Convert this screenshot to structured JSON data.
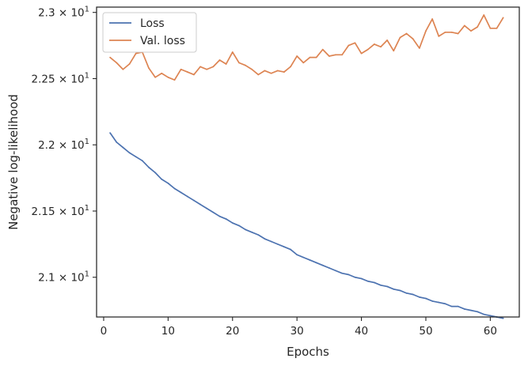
{
  "chart_data": {
    "type": "line",
    "title": "",
    "xlabel": "Epochs",
    "ylabel": "Negative log-likelihood",
    "xlim": [
      -1.1,
      64.5
    ],
    "ylim": [
      20.7,
      23.04
    ],
    "x_ticks": [
      0,
      10,
      20,
      30,
      40,
      50,
      60
    ],
    "y_ticks": [
      {
        "value": 21.0,
        "label_base": "2.1",
        "label_exp": "1"
      },
      {
        "value": 21.5,
        "label_base": "2.15",
        "label_exp": "1"
      },
      {
        "value": 22.0,
        "label_base": "2.2",
        "label_exp": "1"
      },
      {
        "value": 22.5,
        "label_base": "2.25",
        "label_exp": "1"
      },
      {
        "value": 23.0,
        "label_base": "2.3",
        "label_exp": "1"
      }
    ],
    "y_tick_label_multiplier": "× 10",
    "grid": false,
    "legend_position": "top-left",
    "x": [
      1,
      2,
      3,
      4,
      5,
      6,
      7,
      8,
      9,
      10,
      11,
      12,
      13,
      14,
      15,
      16,
      17,
      18,
      19,
      20,
      21,
      22,
      23,
      24,
      25,
      26,
      27,
      28,
      29,
      30,
      31,
      32,
      33,
      34,
      35,
      36,
      37,
      38,
      39,
      40,
      41,
      42,
      43,
      44,
      45,
      46,
      47,
      48,
      49,
      50,
      51,
      52,
      53,
      54,
      55,
      56,
      57,
      58,
      59,
      60,
      61,
      62
    ],
    "series": [
      {
        "name": "Loss",
        "color": "#4c72b0",
        "values": [
          22.09,
          22.02,
          21.98,
          21.94,
          21.91,
          21.88,
          21.83,
          21.79,
          21.74,
          21.71,
          21.67,
          21.64,
          21.61,
          21.58,
          21.55,
          21.52,
          21.49,
          21.46,
          21.44,
          21.41,
          21.39,
          21.36,
          21.34,
          21.32,
          21.29,
          21.27,
          21.25,
          21.23,
          21.21,
          21.17,
          21.15,
          21.13,
          21.11,
          21.09,
          21.07,
          21.05,
          21.03,
          21.02,
          21.0,
          20.99,
          20.97,
          20.96,
          20.94,
          20.93,
          20.91,
          20.9,
          20.88,
          20.87,
          20.85,
          20.84,
          20.82,
          20.81,
          20.8,
          20.78,
          20.78,
          20.76,
          20.75,
          20.74,
          20.72,
          20.71,
          20.7,
          20.69
        ]
      },
      {
        "name": "Val. loss",
        "color": "#dd8452",
        "values": [
          22.66,
          22.62,
          22.57,
          22.61,
          22.69,
          22.7,
          22.58,
          22.51,
          22.54,
          22.51,
          22.49,
          22.57,
          22.55,
          22.53,
          22.59,
          22.57,
          22.59,
          22.64,
          22.61,
          22.7,
          22.62,
          22.6,
          22.57,
          22.53,
          22.56,
          22.54,
          22.56,
          22.55,
          22.59,
          22.67,
          22.62,
          22.66,
          22.66,
          22.72,
          22.67,
          22.68,
          22.68,
          22.75,
          22.77,
          22.69,
          22.72,
          22.76,
          22.74,
          22.79,
          22.71,
          22.81,
          22.84,
          22.8,
          22.73,
          22.86,
          22.95,
          22.82,
          22.85,
          22.85,
          22.84,
          22.9,
          22.86,
          22.89,
          22.98,
          22.88,
          22.88,
          22.96
        ]
      }
    ]
  }
}
